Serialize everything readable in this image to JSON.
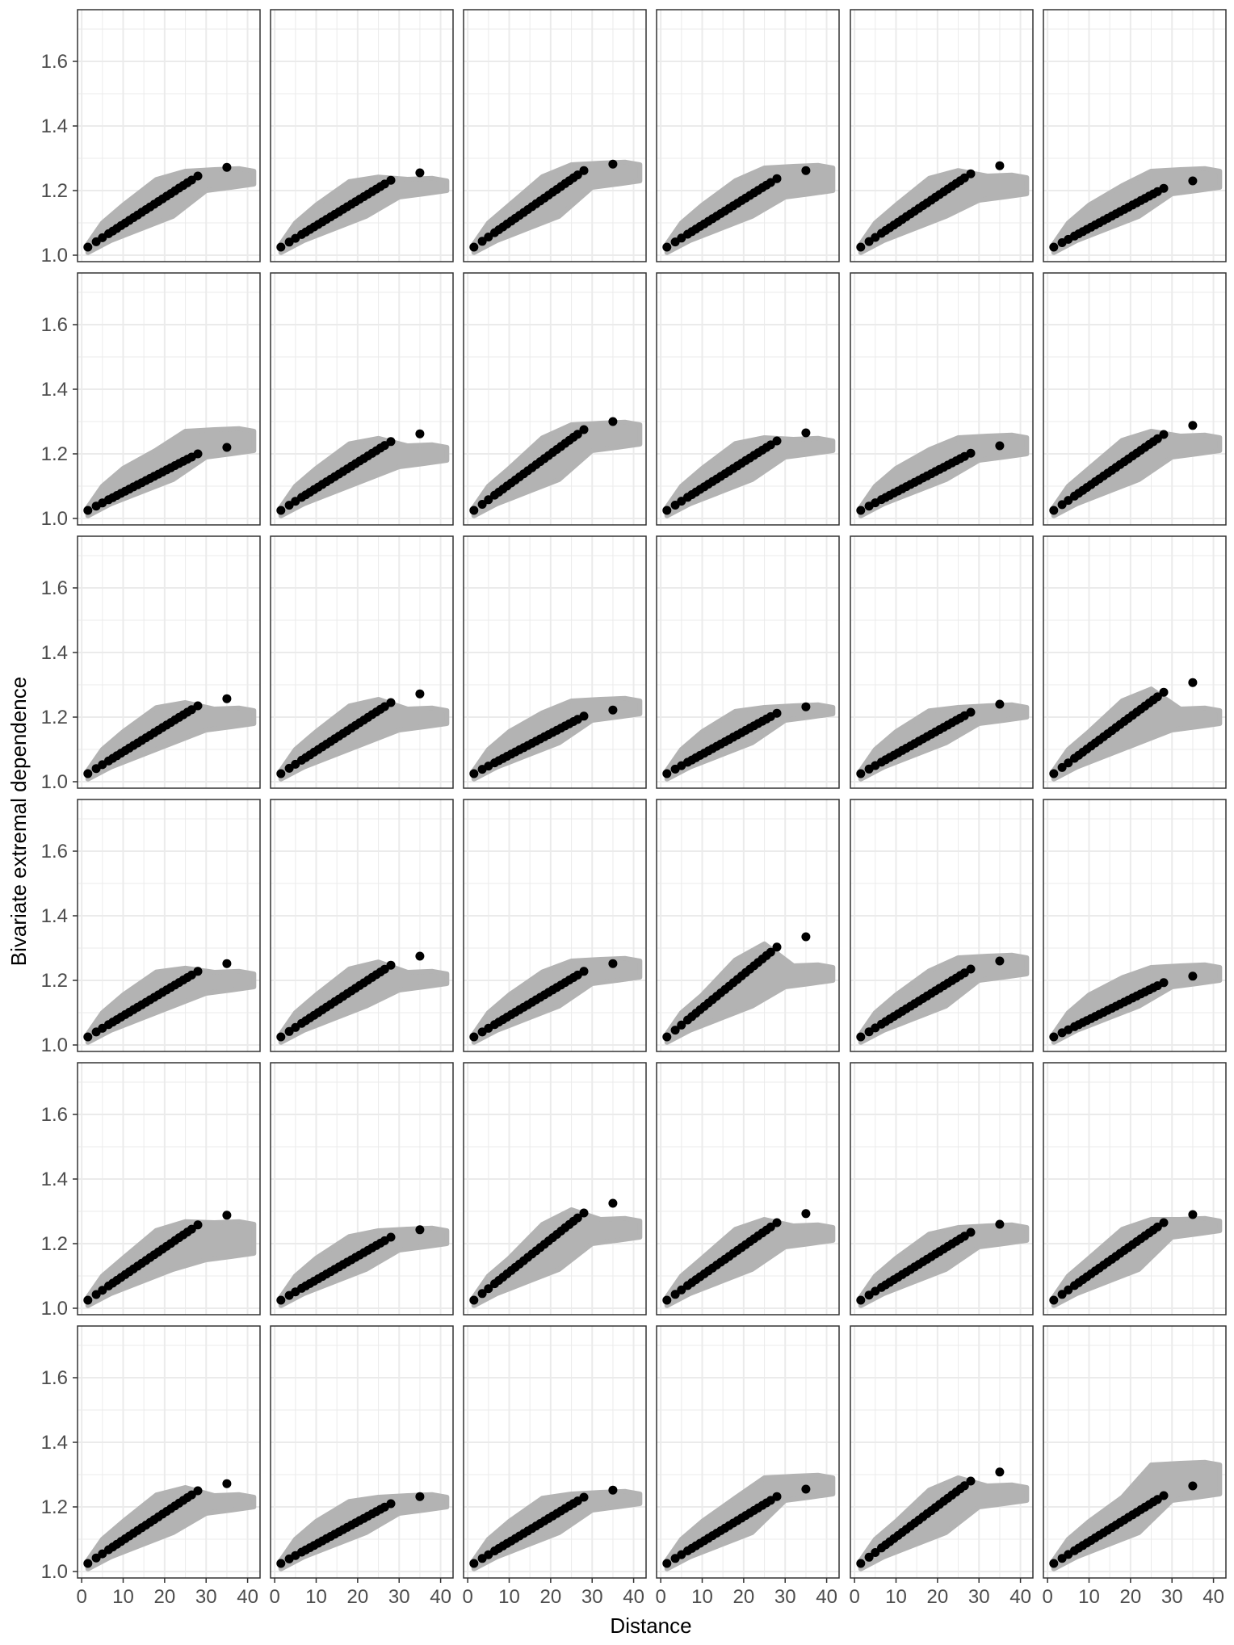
{
  "chart_data": {
    "type": "scatter",
    "layout": "faceted grid, 6 rows x 6 columns, shared axes",
    "xlabel": "Distance",
    "ylabel": "Bivariate extremal dependence",
    "xlim": [
      -1,
      43
    ],
    "ylim": [
      0.98,
      1.76
    ],
    "x_ticks": [
      0,
      10,
      20,
      30,
      40
    ],
    "y_ticks": [
      1.0,
      1.2,
      1.4,
      1.6
    ],
    "x_tick_labels": [
      "0",
      "10",
      "20",
      "30",
      "40"
    ],
    "y_tick_labels": [
      "1.0",
      "1.2",
      "1.4",
      "1.6"
    ],
    "grid": true,
    "colors": {
      "points": "#000000",
      "band": "#b3b3b3",
      "grid": "#ebebeb",
      "panel_border": "#333333"
    },
    "point_x": [
      1.5,
      3.5,
      5,
      6.5,
      7.5,
      8.5,
      9.5,
      10.5,
      11.5,
      12.5,
      13.5,
      14.5,
      15.5,
      16.5,
      17.5,
      18.5,
      19.5,
      20.5,
      21.5,
      22.5,
      23.5,
      24.5,
      25.5,
      26.5,
      28,
      35
    ],
    "panels": [
      {
        "row": 1,
        "col": 1,
        "y_at_28": 1.245,
        "y_at_35": 1.272,
        "band_upper_end": 1.26,
        "band_lower_end": 1.22
      },
      {
        "row": 1,
        "col": 2,
        "y_at_28": 1.232,
        "y_at_35": 1.255,
        "band_upper_end": 1.23,
        "band_lower_end": 1.2
      },
      {
        "row": 1,
        "col": 3,
        "y_at_28": 1.262,
        "y_at_35": 1.282,
        "band_upper_end": 1.28,
        "band_lower_end": 1.23
      },
      {
        "row": 1,
        "col": 4,
        "y_at_28": 1.237,
        "y_at_35": 1.262,
        "band_upper_end": 1.27,
        "band_lower_end": 1.2
      },
      {
        "row": 1,
        "col": 5,
        "y_at_28": 1.252,
        "y_at_35": 1.277,
        "band_upper_end": 1.24,
        "band_lower_end": 1.19
      },
      {
        "row": 1,
        "col": 6,
        "y_at_28": 1.207,
        "y_at_35": 1.23,
        "band_upper_end": 1.26,
        "band_lower_end": 1.21
      },
      {
        "row": 2,
        "col": 1,
        "y_at_28": 1.2,
        "y_at_35": 1.22,
        "band_upper_end": 1.27,
        "band_lower_end": 1.21
      },
      {
        "row": 2,
        "col": 2,
        "y_at_28": 1.238,
        "y_at_35": 1.262,
        "band_upper_end": 1.22,
        "band_lower_end": 1.18
      },
      {
        "row": 2,
        "col": 3,
        "y_at_28": 1.275,
        "y_at_35": 1.3,
        "band_upper_end": 1.29,
        "band_lower_end": 1.23
      },
      {
        "row": 2,
        "col": 4,
        "y_at_28": 1.24,
        "y_at_35": 1.265,
        "band_upper_end": 1.24,
        "band_lower_end": 1.21
      },
      {
        "row": 2,
        "col": 5,
        "y_at_28": 1.202,
        "y_at_35": 1.225,
        "band_upper_end": 1.25,
        "band_lower_end": 1.2
      },
      {
        "row": 2,
        "col": 6,
        "y_at_28": 1.26,
        "y_at_35": 1.288,
        "band_upper_end": 1.25,
        "band_lower_end": 1.21
      },
      {
        "row": 3,
        "col": 1,
        "y_at_28": 1.235,
        "y_at_35": 1.257,
        "band_upper_end": 1.22,
        "band_lower_end": 1.18
      },
      {
        "row": 3,
        "col": 2,
        "y_at_28": 1.245,
        "y_at_35": 1.272,
        "band_upper_end": 1.22,
        "band_lower_end": 1.18
      },
      {
        "row": 3,
        "col": 3,
        "y_at_28": 1.203,
        "y_at_35": 1.222,
        "band_upper_end": 1.25,
        "band_lower_end": 1.21
      },
      {
        "row": 3,
        "col": 4,
        "y_at_28": 1.212,
        "y_at_35": 1.232,
        "band_upper_end": 1.23,
        "band_lower_end": 1.21
      },
      {
        "row": 3,
        "col": 5,
        "y_at_28": 1.215,
        "y_at_35": 1.24,
        "band_upper_end": 1.23,
        "band_lower_end": 1.2
      },
      {
        "row": 3,
        "col": 6,
        "y_at_28": 1.277,
        "y_at_35": 1.307,
        "band_upper_end": 1.22,
        "band_lower_end": 1.18
      },
      {
        "row": 4,
        "col": 1,
        "y_at_28": 1.228,
        "y_at_35": 1.252,
        "band_upper_end": 1.22,
        "band_lower_end": 1.18
      },
      {
        "row": 4,
        "col": 2,
        "y_at_28": 1.247,
        "y_at_35": 1.275,
        "band_upper_end": 1.22,
        "band_lower_end": 1.19
      },
      {
        "row": 4,
        "col": 3,
        "y_at_28": 1.228,
        "y_at_35": 1.252,
        "band_upper_end": 1.26,
        "band_lower_end": 1.21
      },
      {
        "row": 4,
        "col": 4,
        "y_at_28": 1.303,
        "y_at_35": 1.335,
        "band_upper_end": 1.24,
        "band_lower_end": 1.2
      },
      {
        "row": 4,
        "col": 5,
        "y_at_28": 1.235,
        "y_at_35": 1.26,
        "band_upper_end": 1.27,
        "band_lower_end": 1.22
      },
      {
        "row": 4,
        "col": 6,
        "y_at_28": 1.193,
        "y_at_35": 1.213,
        "band_upper_end": 1.24,
        "band_lower_end": 1.2
      },
      {
        "row": 5,
        "col": 1,
        "y_at_28": 1.258,
        "y_at_35": 1.288,
        "band_upper_end": 1.26,
        "band_lower_end": 1.17
      },
      {
        "row": 5,
        "col": 2,
        "y_at_28": 1.22,
        "y_at_35": 1.243,
        "band_upper_end": 1.24,
        "band_lower_end": 1.2
      },
      {
        "row": 5,
        "col": 3,
        "y_at_28": 1.295,
        "y_at_35": 1.325,
        "band_upper_end": 1.27,
        "band_lower_end": 1.22
      },
      {
        "row": 5,
        "col": 4,
        "y_at_28": 1.265,
        "y_at_35": 1.293,
        "band_upper_end": 1.25,
        "band_lower_end": 1.21
      },
      {
        "row": 5,
        "col": 5,
        "y_at_28": 1.235,
        "y_at_35": 1.26,
        "band_upper_end": 1.25,
        "band_lower_end": 1.21
      },
      {
        "row": 5,
        "col": 6,
        "y_at_28": 1.265,
        "y_at_35": 1.29,
        "band_upper_end": 1.27,
        "band_lower_end": 1.24
      },
      {
        "row": 6,
        "col": 1,
        "y_at_28": 1.25,
        "y_at_35": 1.272,
        "band_upper_end": 1.23,
        "band_lower_end": 1.2
      },
      {
        "row": 6,
        "col": 2,
        "y_at_28": 1.21,
        "y_at_35": 1.232,
        "band_upper_end": 1.23,
        "band_lower_end": 1.2
      },
      {
        "row": 6,
        "col": 3,
        "y_at_28": 1.23,
        "y_at_35": 1.252,
        "band_upper_end": 1.24,
        "band_lower_end": 1.21
      },
      {
        "row": 6,
        "col": 4,
        "y_at_28": 1.232,
        "y_at_35": 1.255,
        "band_upper_end": 1.29,
        "band_lower_end": 1.24
      },
      {
        "row": 6,
        "col": 5,
        "y_at_28": 1.28,
        "y_at_35": 1.308,
        "band_upper_end": 1.26,
        "band_lower_end": 1.22
      },
      {
        "row": 6,
        "col": 6,
        "y_at_28": 1.235,
        "y_at_35": 1.265,
        "band_upper_end": 1.33,
        "band_lower_end": 1.24
      }
    ]
  }
}
